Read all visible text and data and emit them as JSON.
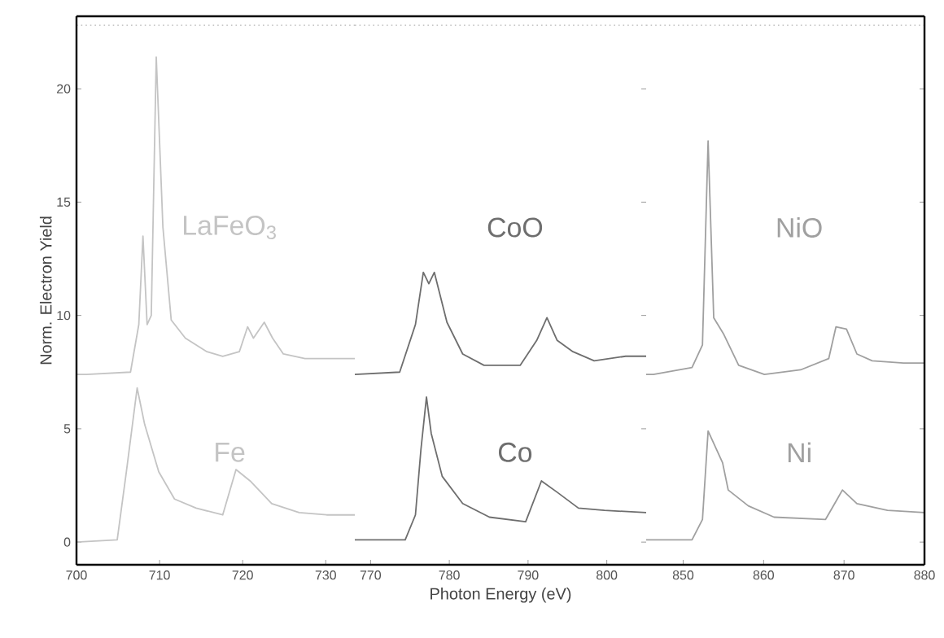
{
  "chart_data": [
    {
      "type": "line",
      "xlim": [
        700,
        733.5
      ],
      "xticks": [
        700,
        710,
        720,
        730
      ],
      "ylim": [
        -1,
        23.2
      ],
      "yticks": [
        0,
        5,
        10,
        15,
        20
      ],
      "ylabel": "Norm. Electron Yield",
      "line_style": "solid",
      "ref_lines": [
        {
          "axis": "y",
          "value": 22.8,
          "color": "#c8c8c8",
          "line_style": "dotted"
        }
      ],
      "series": [
        {
          "name": "LaFeO$_{3}$",
          "color": "#c4c4c4",
          "x": [
            700,
            701.2,
            706.5,
            707.5,
            708.0,
            708.5,
            709.0,
            709.6,
            710.4,
            711.4,
            713.1,
            715.7,
            717.6,
            719.6,
            720.6,
            721.3,
            722.6,
            723.6,
            724.9,
            727.5,
            730.1,
            733.5
          ],
          "values": [
            7.4,
            7.4,
            7.5,
            9.6,
            13.5,
            9.6,
            10,
            21.4,
            13.9,
            9.8,
            9.0,
            8.4,
            8.2,
            8.4,
            9.5,
            9.0,
            9.7,
            9.0,
            8.3,
            8.1,
            8.1,
            8.1
          ]
        },
        {
          "name": "Fe",
          "color": "#c4c4c4",
          "x": [
            700,
            704.9,
            706.0,
            707.3,
            708.2,
            709.9,
            711.8,
            714.4,
            717.6,
            719.2,
            720.9,
            723.5,
            726.8,
            730.1,
            733.5
          ],
          "values": [
            0,
            0.1,
            3.1,
            6.8,
            5.2,
            3.1,
            1.9,
            1.5,
            1.2,
            3.2,
            2.7,
            1.7,
            1.3,
            1.2,
            1.2
          ]
        }
      ]
    },
    {
      "type": "line",
      "xlim": [
        768,
        805
      ],
      "xticks": [
        770,
        780,
        790,
        800
      ],
      "ylim": [
        -1,
        23.2
      ],
      "yticks": [
        0,
        5,
        10,
        15,
        20
      ],
      "tick_labels": "x",
      "xlabel": "Photon Energy (eV)",
      "line_style": "solid",
      "ref_lines": [
        {
          "axis": "y",
          "value": 22.8,
          "color": "#c8c8c8",
          "line_style": "dotted"
        }
      ],
      "series": [
        {
          "name": "CoO",
          "color": "#6e6e6e",
          "x": [
            768,
            773.7,
            775.7,
            776.7,
            777.4,
            778.1,
            779.7,
            781.7,
            784.4,
            789.0,
            791.1,
            792.4,
            793.7,
            795.7,
            798.4,
            802.4,
            805
          ],
          "values": [
            7.4,
            7.5,
            9.6,
            11.9,
            11.4,
            11.9,
            9.7,
            8.3,
            7.8,
            7.8,
            8.9,
            9.9,
            8.9,
            8.4,
            8.0,
            8.2,
            8.2
          ]
        },
        {
          "name": "Co",
          "color": "#6e6e6e",
          "x": [
            768,
            774.4,
            775.7,
            776.4,
            777.1,
            777.7,
            779.1,
            781.7,
            785.1,
            789.7,
            791.7,
            793.7,
            796.4,
            799.7,
            805
          ],
          "values": [
            0.1,
            0.1,
            1.2,
            4.1,
            6.4,
            4.8,
            2.9,
            1.7,
            1.1,
            0.9,
            2.7,
            2.2,
            1.5,
            1.4,
            1.3
          ]
        }
      ]
    },
    {
      "type": "line",
      "xlim": [
        845.4,
        880
      ],
      "xticks": [
        850,
        860,
        870,
        880
      ],
      "ylim": [
        -1,
        23.2
      ],
      "yticks": [
        0,
        5,
        10,
        15,
        20
      ],
      "tick_labels": "x",
      "line_style": "solid",
      "ref_lines": [
        {
          "axis": "y",
          "value": 22.8,
          "color": "#c8c8c8",
          "line_style": "dotted"
        }
      ],
      "series": [
        {
          "name": "NiO",
          "color": "#a0a0a0",
          "x": [
            845.4,
            846.3,
            851.1,
            852.4,
            853.1,
            853.8,
            855.0,
            856.9,
            860.1,
            864.6,
            868.1,
            869.0,
            870.3,
            871.6,
            873.5,
            877.4,
            880
          ],
          "values": [
            7.4,
            7.4,
            7.7,
            8.7,
            17.7,
            9.9,
            9.2,
            7.8,
            7.4,
            7.6,
            8.1,
            9.5,
            9.4,
            8.3,
            8.0,
            7.9,
            7.9
          ]
        },
        {
          "name": "Ni",
          "color": "#a0a0a0",
          "x": [
            845.4,
            851.1,
            852.4,
            853.1,
            854.9,
            855.6,
            858.1,
            861.3,
            867.7,
            869.0,
            869.8,
            871.6,
            875.4,
            880
          ],
          "values": [
            0.1,
            0.1,
            1.0,
            4.9,
            3.5,
            2.3,
            1.6,
            1.1,
            1.0,
            1.8,
            2.3,
            1.7,
            1.4,
            1.3
          ]
        }
      ]
    }
  ]
}
